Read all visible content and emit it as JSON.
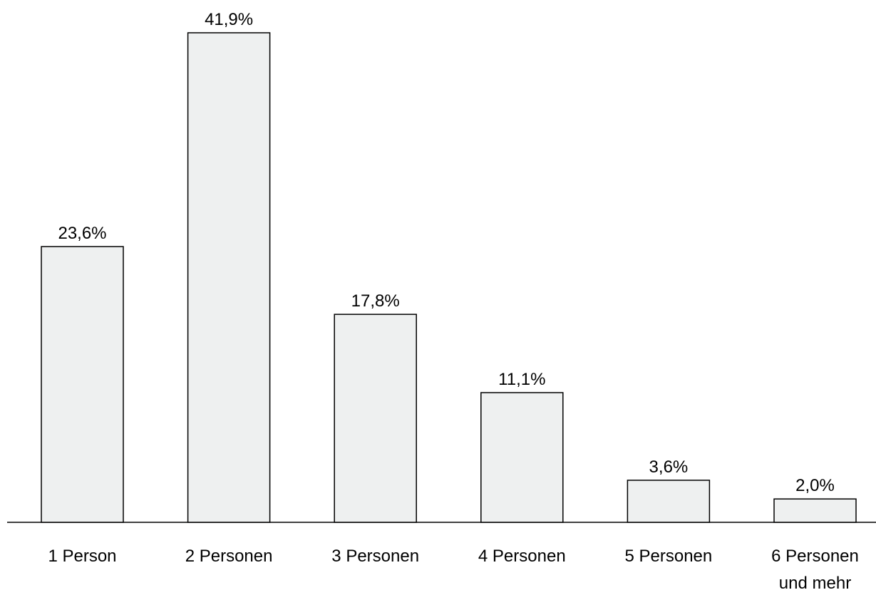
{
  "chart_data": {
    "type": "bar",
    "categories": [
      "1 Person",
      "2 Personen",
      "3 Personen",
      "4 Personen",
      "5 Personen",
      "6 Personen\nund mehr"
    ],
    "values": [
      23.6,
      41.9,
      17.8,
      11.1,
      3.6,
      2.0
    ],
    "value_labels": [
      "23,6%",
      "41,9%",
      "17,8%",
      "11,1%",
      "3,6%",
      "2,0%"
    ],
    "color": "#eef0f0"
  }
}
